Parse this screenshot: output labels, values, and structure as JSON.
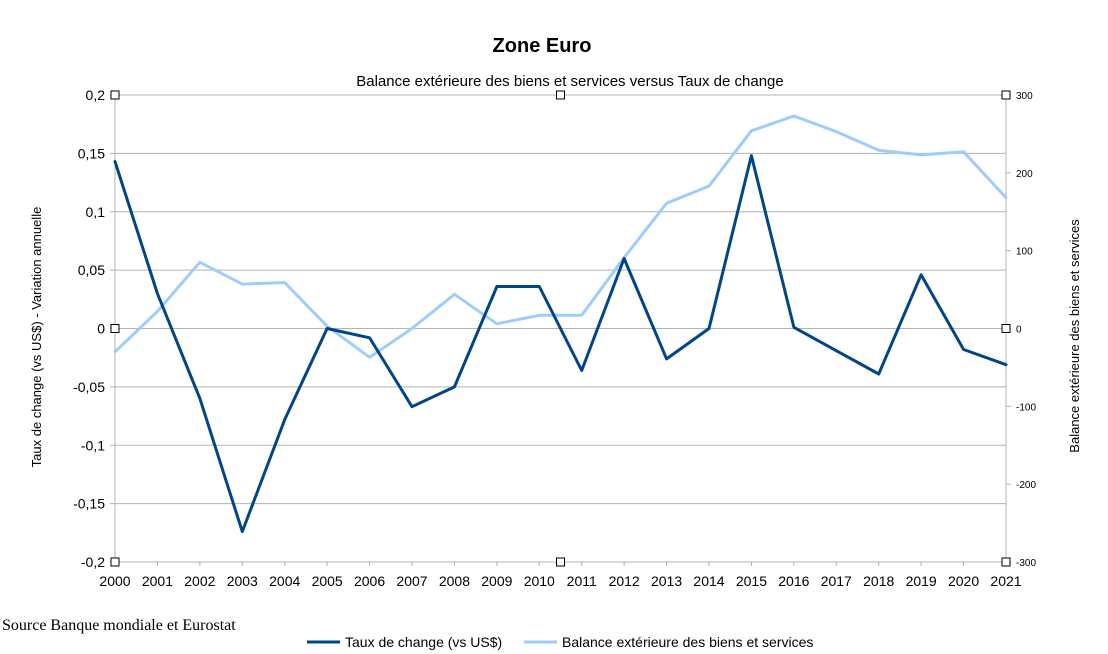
{
  "chart_data": {
    "type": "line",
    "title": "Zone Euro",
    "subtitle": "Balance extérieure des biens et services versus Taux de change",
    "source": "Source Banque mondiale et Eurostat",
    "categories": [
      "2000",
      "2001",
      "2002",
      "2003",
      "2004",
      "2005",
      "2006",
      "2007",
      "2008",
      "2009",
      "2010",
      "2011",
      "2012",
      "2013",
      "2014",
      "2015",
      "2016",
      "2017",
      "2018",
      "2019",
      "2020",
      "2021"
    ],
    "y_left": {
      "label": "Taux de change (vs US$) - Variation annuelle",
      "ylim": [
        -0.2,
        0.2
      ],
      "ticks": [
        0.2,
        0.15,
        0.1,
        0.05,
        0,
        -0.05,
        -0.1,
        -0.15,
        -0.2
      ],
      "tick_labels": [
        "0,2",
        "0,15",
        "0,1",
        "0,05",
        "0",
        "-0,05",
        "-0,1",
        "-0,15",
        "-0,2"
      ]
    },
    "y_right": {
      "label": "Balance extérieure des biens et services",
      "ylim": [
        -300,
        300
      ],
      "ticks": [
        300,
        200,
        100,
        0,
        -100,
        -200,
        -300
      ],
      "tick_labels": [
        "300",
        "200",
        "100",
        "0",
        "-100",
        "-200",
        "-300"
      ]
    },
    "grid": true,
    "legend_position": "bottom",
    "series": [
      {
        "name": "Taux de change (vs US$)",
        "axis": "left",
        "color": "#004586",
        "values": [
          0.143,
          0.03,
          -0.06,
          -0.174,
          -0.078,
          0.0,
          -0.008,
          -0.067,
          -0.05,
          0.036,
          0.036,
          -0.036,
          0.06,
          -0.026,
          0.0,
          0.148,
          0.001,
          -0.019,
          -0.039,
          0.046,
          -0.018,
          -0.031
        ]
      },
      {
        "name": "Balance extérieure des biens et services",
        "axis": "right",
        "color": "#9fcdfa",
        "values": [
          -30,
          22,
          85,
          57,
          59,
          3,
          -37,
          0,
          44,
          6,
          17,
          17,
          91,
          161,
          183,
          254,
          273,
          253,
          229,
          223,
          227,
          168
        ]
      }
    ]
  },
  "legend_labels": {
    "series1": "Taux de change (vs US$)",
    "series2": "Balance extérieure des biens et services"
  }
}
